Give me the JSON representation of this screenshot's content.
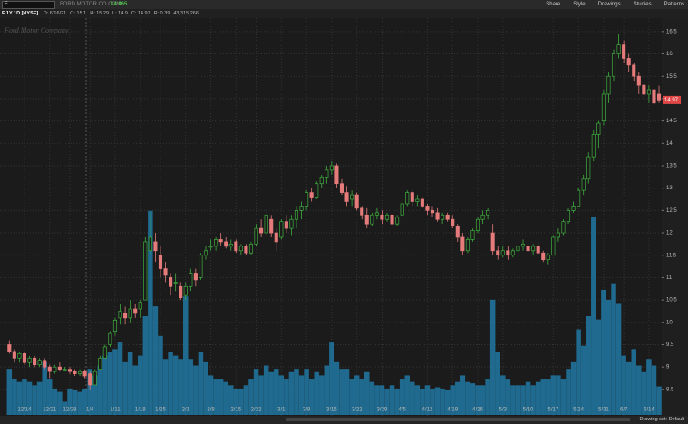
{
  "ui": {
    "symbol": "F",
    "company": "FORD MOTOR CO COM",
    "last": "14.965",
    "toolbar": [
      "Share",
      "Style",
      "Drawings",
      "Studies",
      "Patterns"
    ],
    "chart_label": "F 1Y 1D [NYSE]",
    "info": [
      "D: 6/16/21",
      "O: 15.1",
      "H: 15.29",
      "L: 14.9",
      "C: 14.97",
      "R: 0.39",
      "43,315,266"
    ],
    "watermark": "Ford Motor Company",
    "drawing_set": "Drawing set: Default"
  },
  "chart_data": {
    "type": "candlestick",
    "categories": [
      null,
      null,
      null,
      "12/14",
      null,
      null,
      null,
      null,
      "12/21",
      null,
      null,
      null,
      "12/28",
      null,
      null,
      null,
      "1/4",
      null,
      null,
      null,
      null,
      "1/11",
      null,
      null,
      null,
      null,
      "1/18",
      null,
      null,
      null,
      "1/25",
      null,
      null,
      null,
      null,
      "2/1",
      null,
      null,
      null,
      null,
      "2/8",
      null,
      null,
      null,
      null,
      "2/15",
      null,
      null,
      null,
      "2/22",
      null,
      null,
      null,
      null,
      "3/1",
      null,
      null,
      null,
      null,
      "3/8",
      null,
      null,
      null,
      null,
      "3/15",
      null,
      null,
      null,
      null,
      "3/22",
      null,
      null,
      null,
      null,
      "3/29",
      null,
      null,
      null,
      "4/5",
      null,
      null,
      null,
      null,
      "4/12",
      null,
      null,
      null,
      null,
      "4/19",
      null,
      null,
      null,
      null,
      "4/26",
      null,
      null,
      null,
      null,
      "5/3",
      null,
      null,
      null,
      null,
      "5/10",
      null,
      null,
      null,
      null,
      "5/17",
      null,
      null,
      null,
      null,
      "5/24",
      null,
      null,
      null,
      null,
      "5/31",
      null,
      null,
      null,
      "6/7",
      null,
      null,
      null,
      null,
      "6/14",
      null,
      null
    ],
    "open": [
      9.5,
      9.35,
      9.2,
      9.3,
      9.1,
      9.2,
      9.05,
      9.15,
      9.0,
      8.9,
      9.0,
      8.95,
      8.95,
      8.9,
      8.85,
      8.9,
      8.85,
      8.6,
      8.95,
      9.2,
      9.5,
      9.8,
      10.1,
      10.2,
      10.1,
      10.3,
      10.3,
      10.5,
      11.6,
      11.8,
      11.5,
      11.2,
      11.0,
      10.9,
      10.8,
      10.6,
      10.8,
      11.1,
      11.0,
      11.5,
      11.7,
      11.7,
      11.85,
      11.8,
      11.7,
      11.8,
      11.6,
      11.7,
      11.55,
      11.75,
      12.1,
      12.0,
      12.3,
      12.0,
      11.9,
      12.25,
      12.1,
      12.3,
      12.5,
      12.6,
      12.9,
      12.8,
      13.1,
      13.25,
      13.4,
      13.5,
      13.1,
      12.9,
      12.75,
      12.85,
      12.55,
      12.4,
      12.2,
      12.4,
      12.4,
      12.3,
      12.4,
      12.2,
      12.4,
      12.65,
      12.9,
      12.7,
      12.75,
      12.6,
      12.5,
      12.45,
      12.3,
      12.4,
      12.3,
      12.15,
      11.9,
      11.6,
      11.85,
      12.05,
      12.3,
      12.4,
      12.0,
      11.6,
      11.5,
      11.6,
      11.5,
      11.6,
      11.7,
      11.7,
      11.6,
      11.7,
      11.55,
      11.4,
      11.5,
      11.9,
      12.0,
      12.25,
      12.5,
      12.6,
      12.95,
      13.2,
      13.7,
      14.2,
      14.5,
      15.1,
      15.5,
      16.0,
      16.2,
      15.9,
      15.75,
      15.5,
      15.3,
      15.1,
      15.2,
      15.1
    ],
    "high": [
      9.6,
      9.4,
      9.35,
      9.35,
      9.25,
      9.25,
      9.2,
      9.2,
      9.05,
      9.05,
      9.1,
      9.0,
      9.0,
      8.95,
      8.95,
      8.95,
      8.9,
      8.95,
      9.25,
      9.5,
      9.8,
      10.1,
      10.4,
      10.35,
      10.5,
      10.4,
      10.5,
      11.9,
      12.45,
      12.0,
      11.7,
      11.35,
      11.1,
      11.1,
      10.9,
      10.9,
      11.2,
      11.2,
      11.55,
      11.7,
      11.85,
      11.9,
      12.0,
      11.9,
      11.85,
      11.85,
      11.75,
      11.75,
      11.8,
      12.2,
      12.3,
      12.5,
      12.4,
      12.1,
      12.3,
      12.4,
      12.4,
      12.6,
      12.7,
      12.95,
      13.0,
      13.15,
      13.3,
      13.5,
      13.6,
      13.55,
      13.2,
      13.05,
      12.95,
      12.9,
      12.6,
      12.55,
      12.45,
      12.55,
      12.5,
      12.45,
      12.5,
      12.4,
      12.7,
      12.95,
      12.95,
      12.85,
      12.8,
      12.65,
      12.6,
      12.55,
      12.45,
      12.45,
      12.4,
      12.2,
      12.0,
      11.9,
      12.1,
      12.35,
      12.5,
      12.55,
      12.2,
      11.7,
      11.7,
      11.7,
      11.65,
      11.75,
      11.85,
      11.8,
      11.75,
      11.8,
      11.6,
      11.55,
      11.95,
      12.1,
      12.3,
      12.55,
      12.7,
      13.0,
      13.3,
      13.8,
      14.3,
      14.5,
      15.2,
      15.6,
      16.1,
      16.45,
      16.3,
      16.0,
      15.8,
      15.6,
      15.4,
      15.3,
      15.25,
      15.29
    ],
    "low": [
      9.3,
      9.1,
      9.1,
      9.05,
      9.0,
      9.0,
      9.0,
      8.95,
      8.75,
      8.85,
      8.9,
      8.9,
      8.85,
      8.8,
      8.8,
      8.75,
      8.5,
      8.6,
      8.95,
      9.2,
      9.45,
      9.7,
      9.95,
      9.95,
      10.0,
      10.1,
      10.1,
      10.5,
      11.5,
      11.35,
      11.0,
      10.9,
      10.6,
      10.7,
      10.5,
      10.5,
      10.7,
      10.8,
      10.95,
      11.4,
      11.6,
      11.6,
      11.7,
      11.65,
      11.6,
      11.55,
      11.5,
      11.5,
      11.5,
      11.7,
      11.9,
      11.95,
      11.9,
      11.6,
      11.85,
      12.0,
      11.95,
      12.1,
      12.3,
      12.5,
      12.7,
      12.75,
      13.0,
      13.1,
      13.3,
      13.0,
      12.85,
      12.6,
      12.6,
      12.5,
      12.3,
      12.1,
      12.15,
      12.3,
      12.2,
      12.25,
      12.1,
      12.15,
      12.35,
      12.6,
      12.6,
      12.6,
      12.55,
      12.4,
      12.35,
      12.25,
      12.2,
      12.25,
      12.1,
      11.8,
      11.5,
      11.55,
      11.8,
      12.0,
      12.2,
      12.3,
      11.5,
      11.4,
      11.45,
      11.4,
      11.45,
      11.5,
      11.6,
      11.55,
      11.5,
      11.5,
      11.35,
      11.3,
      11.5,
      11.8,
      11.95,
      12.2,
      12.45,
      12.6,
      12.85,
      13.1,
      13.6,
      13.9,
      14.4,
      14.9,
      15.4,
      15.9,
      15.8,
      15.6,
      15.4,
      15.1,
      15.0,
      14.9,
      14.85,
      14.9
    ],
    "close": [
      9.35,
      9.2,
      9.3,
      9.1,
      9.2,
      9.05,
      9.15,
      9.0,
      8.9,
      9.0,
      8.95,
      8.95,
      8.9,
      8.85,
      8.9,
      8.8,
      8.6,
      8.9,
      9.2,
      9.45,
      9.75,
      10.05,
      10.25,
      10.1,
      10.3,
      10.2,
      10.45,
      11.8,
      11.9,
      11.6,
      11.2,
      11.05,
      10.8,
      10.9,
      10.55,
      10.8,
      11.1,
      10.95,
      11.5,
      11.6,
      11.7,
      11.85,
      11.8,
      11.7,
      11.75,
      11.6,
      11.7,
      11.55,
      11.75,
      12.1,
      12.0,
      12.4,
      12.0,
      11.8,
      12.25,
      12.1,
      12.3,
      12.5,
      12.6,
      12.9,
      12.8,
      13.1,
      13.25,
      13.4,
      13.5,
      13.1,
      12.9,
      12.7,
      12.85,
      12.55,
      12.4,
      12.2,
      12.4,
      12.45,
      12.3,
      12.4,
      12.2,
      12.35,
      12.65,
      12.9,
      12.7,
      12.75,
      12.6,
      12.5,
      12.45,
      12.3,
      12.4,
      12.3,
      12.15,
      11.9,
      11.6,
      11.85,
      12.05,
      12.3,
      12.4,
      12.5,
      11.6,
      11.5,
      11.6,
      11.5,
      11.6,
      11.7,
      11.75,
      11.6,
      11.7,
      11.55,
      11.4,
      11.5,
      11.9,
      12.0,
      12.25,
      12.5,
      12.6,
      12.95,
      13.2,
      13.7,
      14.2,
      14.45,
      15.1,
      15.5,
      16.0,
      16.2,
      15.9,
      15.75,
      15.5,
      15.3,
      15.1,
      15.2,
      14.9,
      14.97
    ],
    "volume": [
      70,
      55,
      50,
      55,
      50,
      45,
      50,
      80,
      55,
      40,
      35,
      20,
      40,
      38,
      35,
      40,
      70,
      60,
      75,
      90,
      95,
      100,
      110,
      80,
      95,
      75,
      90,
      150,
      310,
      165,
      120,
      85,
      95,
      90,
      85,
      180,
      85,
      75,
      95,
      80,
      60,
      55,
      55,
      50,
      45,
      40,
      40,
      45,
      55,
      70,
      60,
      75,
      65,
      70,
      60,
      55,
      65,
      70,
      60,
      70,
      55,
      65,
      60,
      75,
      110,
      80,
      70,
      70,
      55,
      60,
      55,
      65,
      50,
      45,
      45,
      40,
      45,
      40,
      55,
      60,
      50,
      45,
      40,
      45,
      40,
      42,
      40,
      38,
      45,
      50,
      60,
      50,
      48,
      45,
      45,
      55,
      175,
      95,
      60,
      55,
      45,
      45,
      45,
      50,
      45,
      50,
      55,
      55,
      60,
      60,
      55,
      70,
      80,
      130,
      105,
      150,
      300,
      145,
      190,
      175,
      200,
      170,
      90,
      80,
      100,
      75,
      65,
      85,
      75,
      43.3
    ],
    "ylim": [
      7.93,
      16.76
    ],
    "yticks": [
      8.5,
      9,
      9.5,
      10,
      10.5,
      11,
      11.5,
      12,
      12.5,
      13,
      13.5,
      14,
      14.5,
      15,
      15.5,
      16,
      16.5
    ],
    "y2lim": [
      0,
      600
    ],
    "grid": true,
    "colors": {
      "up": "#3fae3f",
      "down": "#e57b7b",
      "volume": "#1f6a8e",
      "last": "#e04848"
    }
  }
}
